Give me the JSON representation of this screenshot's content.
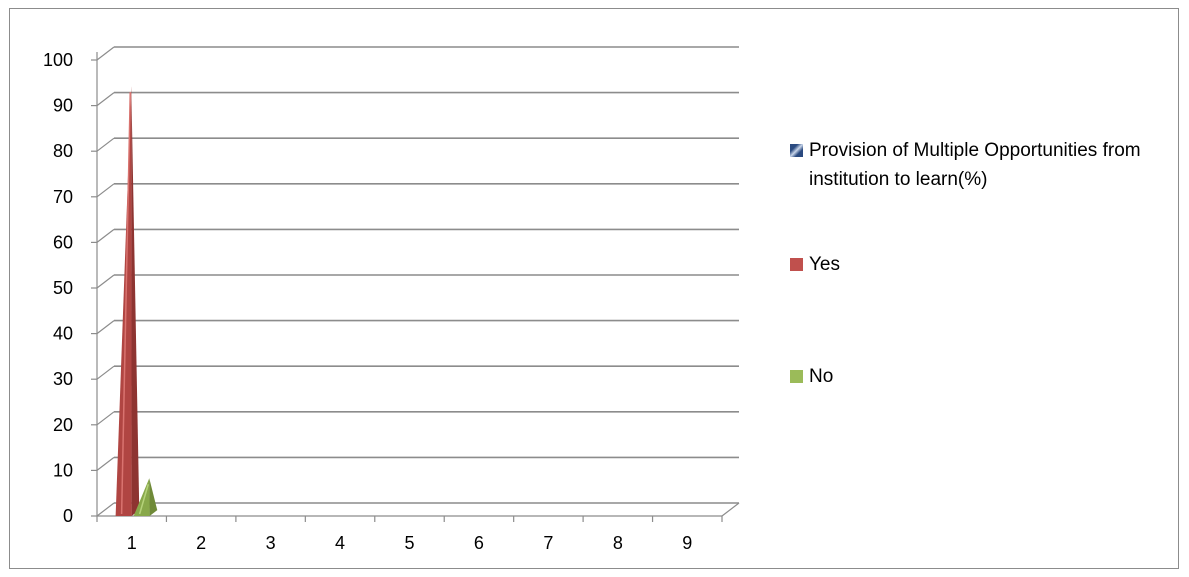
{
  "chart_data": {
    "type": "bar",
    "categories": [
      "1",
      "2",
      "3",
      "4",
      "5",
      "6",
      "7",
      "8",
      "9"
    ],
    "series": [
      {
        "name": "Provision of Multiple Opportunities from institution to learn(%)",
        "values": [
          null,
          null,
          null,
          null,
          null,
          null,
          null,
          null,
          null
        ],
        "color": "#4a6fa5"
      },
      {
        "name": "Yes",
        "values": [
          93,
          null,
          null,
          null,
          null,
          null,
          null,
          null,
          null
        ],
        "color": "#c0504d"
      },
      {
        "name": "No",
        "values": [
          7,
          null,
          null,
          null,
          null,
          null,
          null,
          null,
          null
        ],
        "color": "#9bbb59"
      }
    ],
    "y_ticks": [
      "0",
      "10",
      "20",
      "30",
      "40",
      "50",
      "60",
      "70",
      "80",
      "90",
      "100"
    ],
    "ylim": [
      0,
      100
    ],
    "grid": true,
    "legend_position": "right",
    "mark_shape": "pyramid-3d"
  }
}
